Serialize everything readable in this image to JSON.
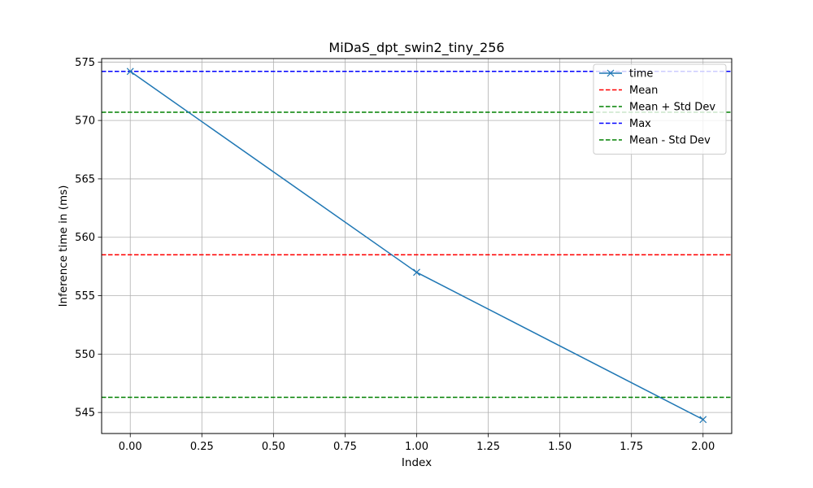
{
  "chart_data": {
    "type": "line",
    "title": "MiDaS_dpt_swin2_tiny_256",
    "xlabel": "Index",
    "ylabel": "Inference time in (ms)",
    "xlim": [
      -0.1,
      2.1
    ],
    "ylim": [
      543.2,
      575.3
    ],
    "xticks": [
      "0.00",
      "0.25",
      "0.50",
      "0.75",
      "1.00",
      "1.25",
      "1.50",
      "1.75",
      "2.00"
    ],
    "yticks": [
      "545",
      "550",
      "555",
      "560",
      "565",
      "570",
      "575"
    ],
    "grid": true,
    "legend_position": "top-right",
    "series": [
      {
        "name": "time",
        "x": [
          0,
          1,
          2
        ],
        "values": [
          574.2,
          557.0,
          544.4
        ],
        "color": "#1f77b4",
        "style": "solid",
        "marker": "x"
      }
    ],
    "reference_lines": [
      {
        "name": "Mean",
        "value": 558.5,
        "color": "#ff0000",
        "style": "dashed"
      },
      {
        "name": "Mean + Std Dev",
        "value": 570.7,
        "color": "#008000",
        "style": "dashed"
      },
      {
        "name": "Max",
        "value": 574.2,
        "color": "#0000ff",
        "style": "dashed"
      },
      {
        "name": "Mean - Std Dev",
        "value": 546.3,
        "color": "#008000",
        "style": "dashed"
      }
    ],
    "legend": [
      "time",
      "Mean",
      "Mean + Std Dev",
      "Max",
      "Mean - Std Dev"
    ]
  }
}
